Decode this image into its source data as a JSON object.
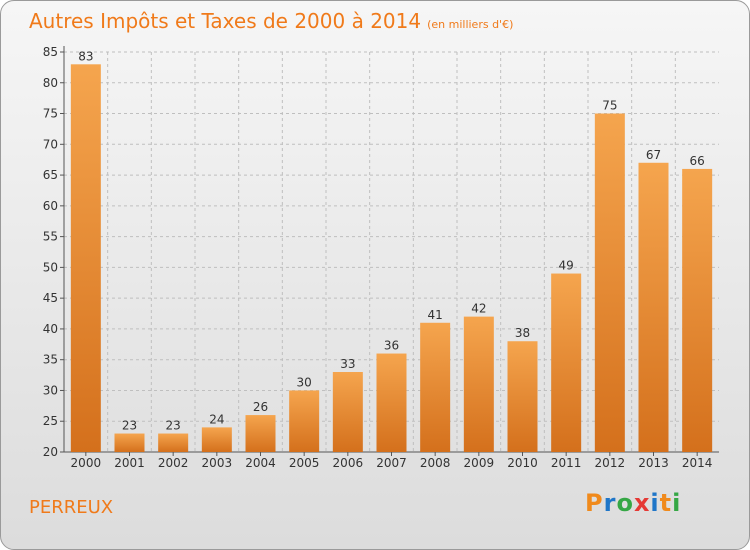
{
  "title": "Autres Impôts et Taxes de 2000 à 2014",
  "unit_note": "(en milliers d'€)",
  "place": "PERREUX",
  "logo": {
    "letters": [
      "P",
      "r",
      "o",
      "x",
      "i",
      "t",
      "i"
    ],
    "colors": [
      "#f08a1c",
      "#1f76c8",
      "#35a745",
      "#e53935",
      "#1f76c8",
      "#f08a1c",
      "#35a745"
    ]
  },
  "colors": {
    "bar_light": "#f5a54e",
    "bar_dark": "#d4701c",
    "title": "#f07a1a",
    "text": "#333333",
    "grid": "#bfbfbf"
  },
  "chart_data": {
    "type": "bar",
    "title": "Autres Impôts et Taxes de 2000 à 2014",
    "ylabel": "",
    "xlabel": "",
    "categories": [
      "2000",
      "2001",
      "2002",
      "2003",
      "2004",
      "2005",
      "2006",
      "2007",
      "2008",
      "2009",
      "2010",
      "2011",
      "2012",
      "2013",
      "2014"
    ],
    "values": [
      83,
      23,
      23,
      24,
      26,
      30,
      33,
      36,
      41,
      42,
      38,
      49,
      75,
      67,
      66
    ],
    "ylim": [
      20,
      85
    ],
    "yticks": [
      20,
      25,
      30,
      35,
      40,
      45,
      50,
      55,
      60,
      65,
      70,
      75,
      80,
      85
    ],
    "grid": true
  }
}
